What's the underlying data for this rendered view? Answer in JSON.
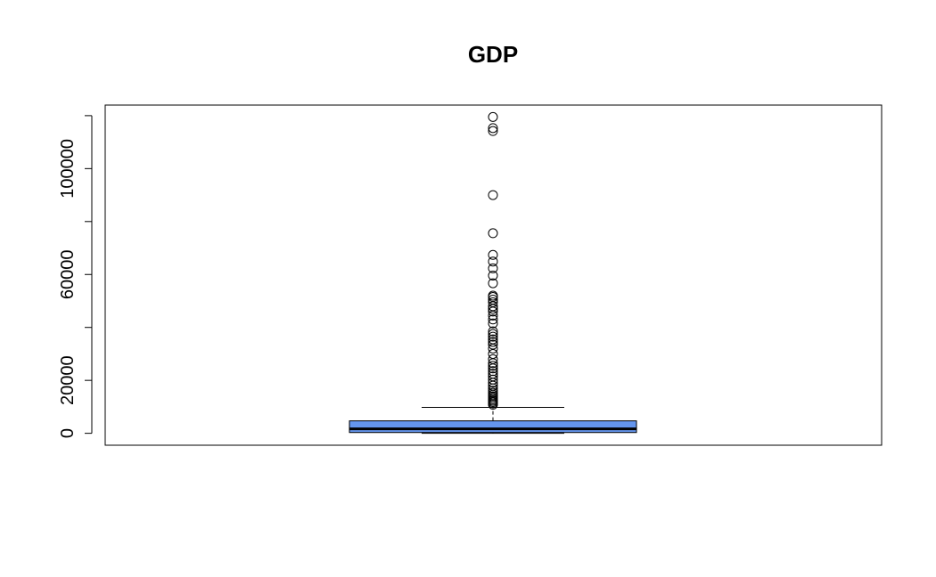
{
  "chart_data": {
    "type": "box",
    "title": "GDP",
    "xlabel": "",
    "ylabel": "",
    "ylim": [
      -4500,
      124000
    ],
    "yticks": [
      0,
      20000,
      40000,
      60000,
      80000,
      100000,
      120000
    ],
    "ytick_labels": [
      "0",
      "20000",
      "",
      "60000",
      "",
      "100000",
      ""
    ],
    "box_color": "#6495ED",
    "grid": false,
    "legend": "none",
    "series": [
      {
        "whisker_low": 0,
        "q1": 300,
        "median": 1700,
        "q3": 4700,
        "whisker_high": 9800,
        "outliers": [
          10800,
          11300,
          11800,
          12300,
          12800,
          13400,
          14000,
          14600,
          15300,
          16100,
          17000,
          18000,
          19100,
          20300,
          21500,
          22500,
          23500,
          24500,
          25500,
          26500,
          28000,
          30000,
          32000,
          33500,
          34500,
          35500,
          36500,
          37500,
          38500,
          41500,
          43000,
          44500,
          46000,
          47000,
          48000,
          49500,
          50500,
          51500,
          52000,
          56700,
          59600,
          62300,
          64900,
          67400,
          75600,
          90000,
          114200,
          115300,
          119500
        ]
      }
    ]
  }
}
